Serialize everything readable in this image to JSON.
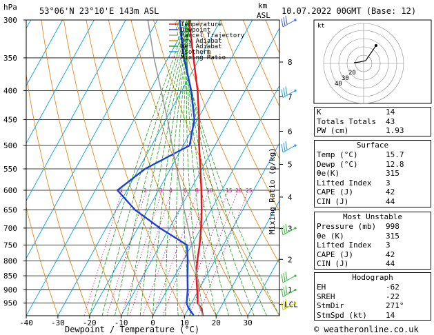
{
  "header": {
    "unit_left": "hPa",
    "location": "53°06'N 23°10'E 143m ASL",
    "unit_right_1": "km",
    "unit_right_2": "ASL",
    "datetime": "10.07.2022 00GMT (Base: 12)"
  },
  "legend": [
    {
      "label": "Temperature",
      "color": "#e8121b"
    },
    {
      "label": "Dewpoint",
      "color": "#1a3fd6"
    },
    {
      "label": "Parcel Trajectory",
      "color": "#9a9a9a"
    },
    {
      "label": "Dry Adiabat",
      "color": "#e87a00"
    },
    {
      "label": "Wet Adiabat",
      "color": "#1a9b1a"
    },
    {
      "label": "Isotherm",
      "color": "#00a0e0"
    },
    {
      "label": "Mixing Ratio",
      "color": "#d4148a"
    }
  ],
  "chart_data": {
    "type": "skew-t",
    "xlabel": "Dewpoint / Temperature (°C)",
    "ylabel": "Mixing Ratio (g/kg)",
    "xlim": [
      -40,
      40
    ],
    "ylim": [
      1000,
      300
    ],
    "x_ticks": [
      -40,
      -30,
      -20,
      -10,
      0,
      10,
      20,
      30
    ],
    "pressure_levels": [
      300,
      350,
      400,
      450,
      500,
      550,
      600,
      650,
      700,
      750,
      800,
      850,
      900,
      950
    ],
    "km_ticks": [
      {
        "label": "8",
        "p": 356
      },
      {
        "label": "7",
        "p": 410
      },
      {
        "label": "6",
        "p": 472
      },
      {
        "label": "5",
        "p": 540
      },
      {
        "label": "4",
        "p": 617
      },
      {
        "label": "3",
        "p": 701
      },
      {
        "label": "2",
        "p": 795
      },
      {
        "label": "1",
        "p": 900
      },
      {
        "label": "LCL",
        "p": 955
      }
    ],
    "mixing_ratio_labels": [
      "1",
      "2",
      "3",
      "4",
      "6",
      "8",
      "10",
      "15",
      "20",
      "25"
    ],
    "series": [
      {
        "name": "Temperature",
        "color": "#e8121b",
        "points": [
          [
            15.7,
            998
          ],
          [
            14,
            970
          ],
          [
            12,
            950
          ],
          [
            9.5,
            900
          ],
          [
            6.8,
            850
          ],
          [
            4.5,
            800
          ],
          [
            2.5,
            750
          ],
          [
            0,
            700
          ],
          [
            -3,
            650
          ],
          [
            -6.5,
            600
          ],
          [
            -10.5,
            550
          ],
          [
            -15,
            500
          ],
          [
            -19.5,
            450
          ],
          [
            -25,
            400
          ],
          [
            -32,
            350
          ],
          [
            -40,
            300
          ]
        ]
      },
      {
        "name": "Dewpoint",
        "color": "#1a3fd6",
        "points": [
          [
            12.8,
            998
          ],
          [
            10,
            970
          ],
          [
            8.5,
            950
          ],
          [
            6.5,
            900
          ],
          [
            4,
            850
          ],
          [
            1.5,
            800
          ],
          [
            -1.5,
            750
          ],
          [
            -13,
            700
          ],
          [
            -24,
            650
          ],
          [
            -33,
            600
          ],
          [
            -28,
            550
          ],
          [
            -18,
            500
          ],
          [
            -21,
            450
          ],
          [
            -27,
            400
          ],
          [
            -35,
            350
          ],
          [
            -43,
            300
          ]
        ]
      },
      {
        "name": "Parcel Trajectory",
        "color": "#9a9a9a",
        "points": [
          [
            15.7,
            998
          ],
          [
            12.5,
            955
          ],
          [
            10,
            900
          ],
          [
            7,
            850
          ],
          [
            3.5,
            800
          ],
          [
            0,
            750
          ],
          [
            -4,
            700
          ],
          [
            -8.5,
            650
          ],
          [
            -13,
            600
          ],
          [
            -18,
            550
          ],
          [
            -23.5,
            500
          ],
          [
            -29.5,
            450
          ],
          [
            -36.5,
            400
          ],
          [
            -44.5,
            350
          ],
          [
            -53,
            300
          ]
        ]
      }
    ],
    "wind_barbs": [
      {
        "p": 300,
        "color": "#4060e0"
      },
      {
        "p": 400,
        "color": "#20a0e0"
      },
      {
        "p": 500,
        "color": "#20a0e0"
      },
      {
        "p": 700,
        "color": "#30c030"
      },
      {
        "p": 850,
        "color": "#30c030"
      },
      {
        "p": 900,
        "color": "#30c030"
      },
      {
        "p": 950,
        "color": "#c8c800"
      }
    ]
  },
  "hodograph": {
    "unit": "kt",
    "ring_labels": [
      "20",
      "30",
      "40"
    ]
  },
  "indices": [
    {
      "label": "K",
      "value": "14"
    },
    {
      "label": "Totals Totals",
      "value": "43"
    },
    {
      "label": "PW (cm)",
      "value": "1.93"
    }
  ],
  "surface": {
    "title": "Surface",
    "rows": [
      {
        "label": "Temp (°C)",
        "value": "15.7"
      },
      {
        "label": "Dewp (°C)",
        "value": "12.8"
      },
      {
        "label": "θe(K)",
        "value": "315"
      },
      {
        "label": "Lifted Index",
        "value": "3"
      },
      {
        "label": "CAPE (J)",
        "value": "42"
      },
      {
        "label": "CIN (J)",
        "value": "44"
      }
    ]
  },
  "most_unstable": {
    "title": "Most Unstable",
    "rows": [
      {
        "label": "Pressure (mb)",
        "value": "998"
      },
      {
        "label": "θe (K)",
        "value": "315"
      },
      {
        "label": "Lifted Index",
        "value": "3"
      },
      {
        "label": "CAPE (J)",
        "value": "42"
      },
      {
        "label": "CIN (J)",
        "value": "44"
      }
    ]
  },
  "hodograph_table": {
    "title": "Hodograph",
    "rows": [
      {
        "label": "EH",
        "value": "-62"
      },
      {
        "label": "SREH",
        "value": "-22"
      },
      {
        "label": "StmDir",
        "value": "271°"
      },
      {
        "label": "StmSpd (kt)",
        "value": "14"
      }
    ]
  },
  "footer": "© weatheronline.co.uk"
}
